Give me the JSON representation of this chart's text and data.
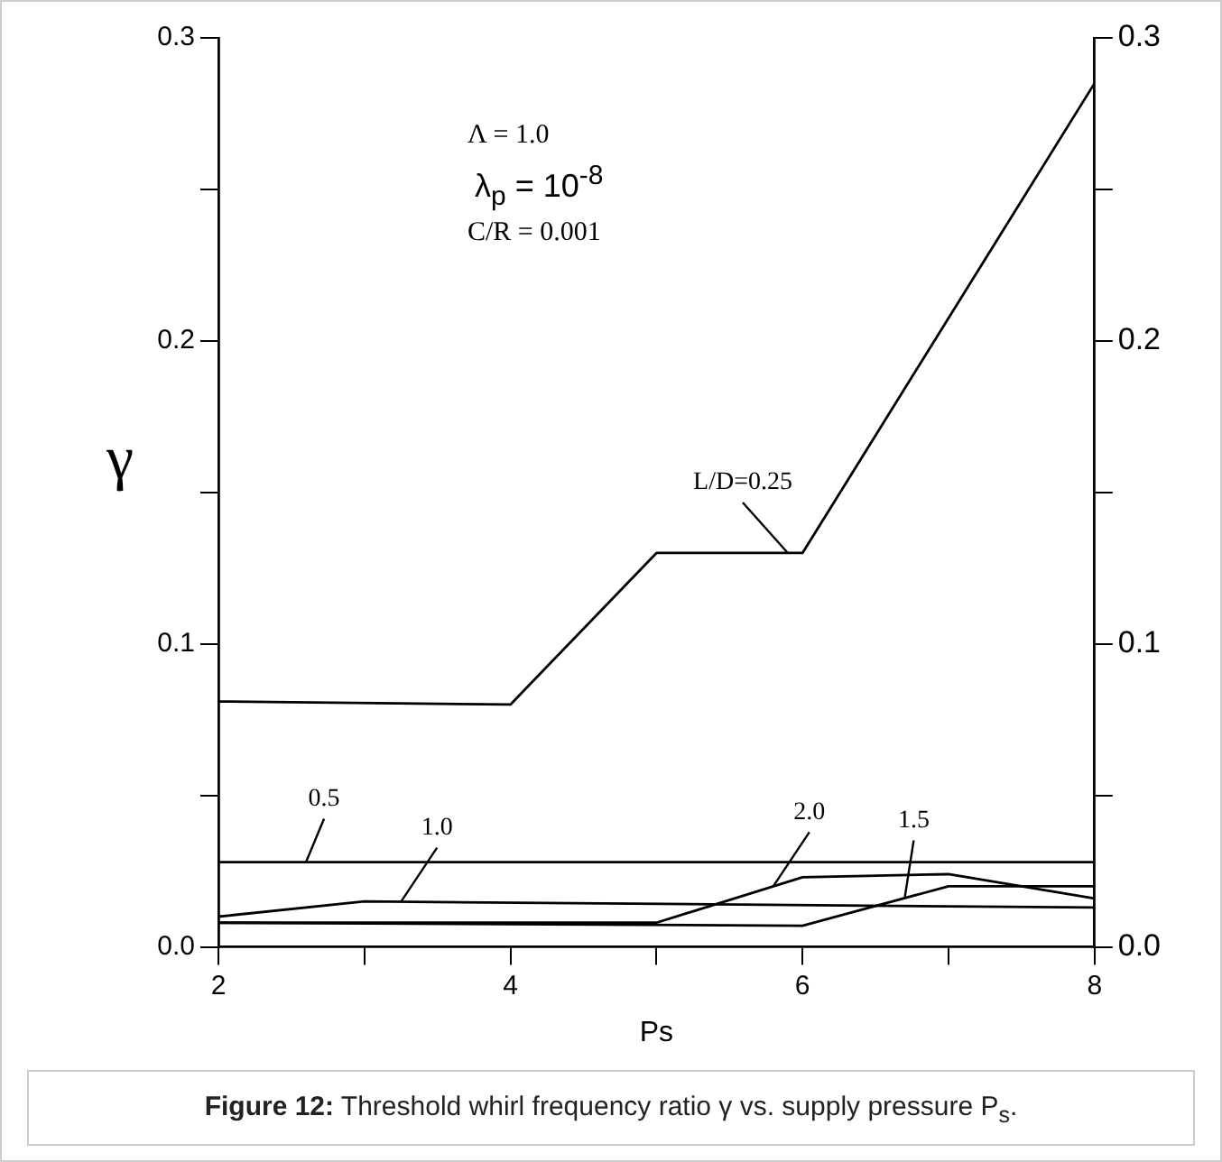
{
  "chart_data": {
    "type": "line",
    "xlabel": "Ps",
    "ylabel": "γ",
    "xlim": [
      2,
      8
    ],
    "xticks": [
      2,
      {
        "value": 3,
        "label": null
      },
      4,
      {
        "value": 5,
        "label": null
      },
      6,
      {
        "value": 7,
        "label": null
      },
      8
    ],
    "ylim": [
      0,
      0.3
    ],
    "yticks": [
      {
        "value": 0,
        "label": "0.0"
      },
      {
        "value": 0.05,
        "label": null
      },
      0.1,
      {
        "value": 0.15,
        "label": null
      },
      0.2,
      {
        "value": 0.25,
        "label": null
      },
      0.3
    ],
    "y2lim": [
      0,
      0.3
    ],
    "y2ticks": [
      {
        "value": 0,
        "label": "0.0"
      },
      {
        "value": 0.05,
        "label": null
      },
      0.1,
      {
        "value": 0.15,
        "label": null
      },
      0.2,
      {
        "value": 0.25,
        "label": null
      },
      0.3
    ],
    "grid": false,
    "legend": false,
    "marker": "none",
    "line_style": "solid",
    "series": [
      {
        "name": "L/D=0.25",
        "color": "#000000",
        "x": [
          2,
          4,
          5,
          6,
          8
        ],
        "values": [
          0.081,
          0.08,
          0.13,
          0.13,
          0.285
        ]
      },
      {
        "name": "0.5",
        "color": "#000000",
        "x": [
          2,
          8
        ],
        "values": [
          0.028,
          0.028
        ]
      },
      {
        "name": "1.0",
        "color": "#000000",
        "x": [
          2,
          3,
          8
        ],
        "values": [
          0.01,
          0.015,
          0.013
        ]
      },
      {
        "name": "2.0",
        "color": "#000000",
        "x": [
          2,
          5,
          6,
          7,
          8
        ],
        "values": [
          0.008,
          0.008,
          0.023,
          0.024,
          0.016
        ]
      },
      {
        "name": "1.5",
        "color": "#000000",
        "x": [
          2,
          6,
          7,
          8
        ],
        "values": [
          0.008,
          0.007,
          0.02,
          0.02
        ]
      }
    ],
    "annotations": [
      "Λ = 1.0",
      "λ$_{p}$ = 10$^{-8}$",
      "C/R = 0.001",
      "Figure 12: Threshold whirl frequency ratio γ vs. supply pressure P$_{s}$."
    ]
  }
}
